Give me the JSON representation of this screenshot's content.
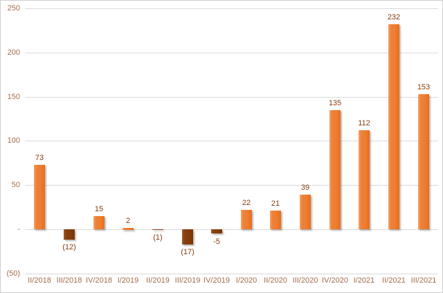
{
  "chart_data": {
    "type": "bar",
    "title": "",
    "xlabel": "",
    "ylabel": "",
    "legend": false,
    "grid": true,
    "categories": [
      "II/2018",
      "III/2018",
      "IV/2018",
      "I/2019",
      "II/2019",
      "III/2019",
      "IV/2019",
      "I/2020",
      "II/2020",
      "III/2020",
      "IV/2020",
      "I/2021",
      "II/2021",
      "III/2021"
    ],
    "values": [
      73,
      -12,
      15,
      2,
      -1,
      -17,
      -5,
      22,
      21,
      39,
      135,
      112,
      232,
      153
    ],
    "data_labels": [
      "73",
      "(12)",
      "15",
      "2",
      "(1)",
      "(17)",
      "-5",
      "22",
      "21",
      "39",
      "135",
      "112",
      "232",
      "153"
    ],
    "ylim": [
      -50,
      250
    ],
    "y_axis_ticks": [
      {
        "value": 250,
        "label": "250"
      },
      {
        "value": 200,
        "label": "200"
      },
      {
        "value": 150,
        "label": "150"
      },
      {
        "value": 100,
        "label": "100"
      },
      {
        "value": 50,
        "label": "50"
      },
      {
        "value": 0,
        "label": "-"
      },
      {
        "value": -50,
        "label": "(50)"
      }
    ],
    "colors": {
      "positive_bar": "#ED7D31",
      "negative_bar": "#843C0C",
      "data_label": "#843C0C",
      "axis_label": "#A26B48",
      "gridline": "#D9D9D9",
      "border": "#D0CECE",
      "background": "#FFFFFF"
    }
  }
}
